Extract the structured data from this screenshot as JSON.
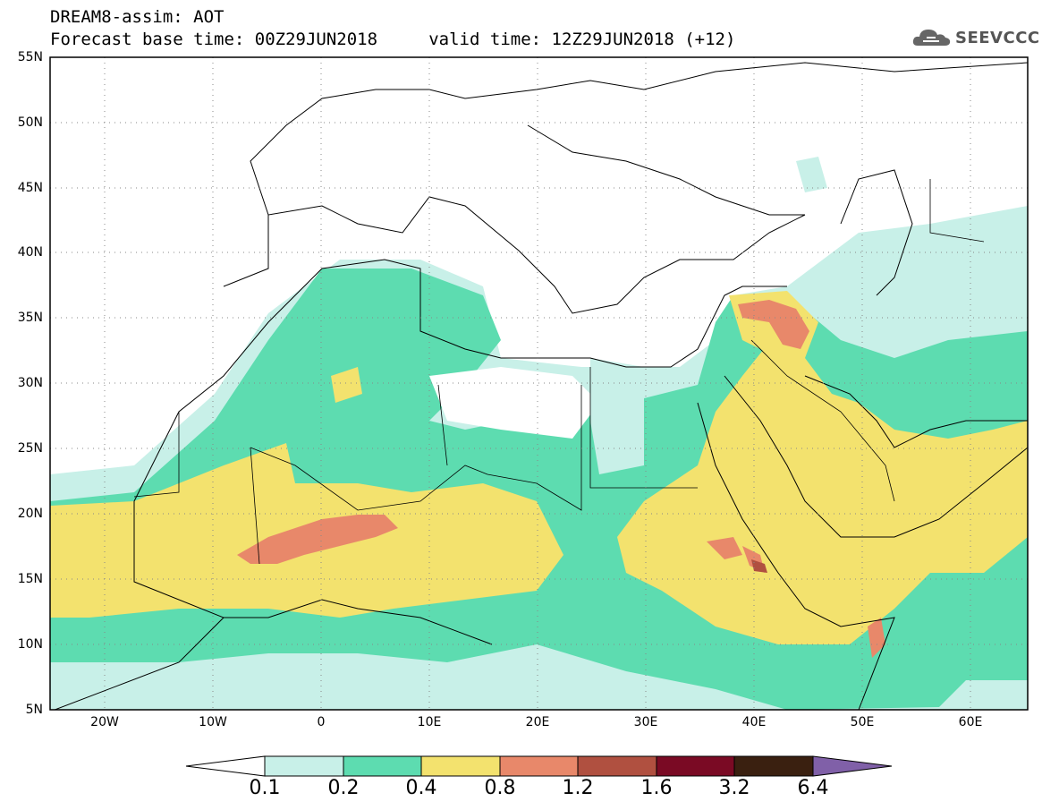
{
  "header": {
    "title_line1": "DREAM8-assim: AOT",
    "title_line2": "Forecast base time: 00Z29JUN2018     valid time: 12Z29JUN2018 (+12)",
    "logo_text": "SEEVCCC",
    "logo_icon": "cloud-icon"
  },
  "map": {
    "lat_labels": [
      "55N",
      "50N",
      "45N",
      "40N",
      "35N",
      "30N",
      "25N",
      "20N",
      "15N",
      "10N",
      "5N"
    ],
    "lon_labels": [
      "20W",
      "10W",
      "0",
      "10E",
      "20E",
      "30E",
      "40E",
      "50E",
      "60E"
    ],
    "lat_range": [
      5,
      55
    ],
    "lon_range": [
      -25,
      65
    ],
    "grid": true
  },
  "colorbar": {
    "levels": [
      "0.1",
      "0.2",
      "0.4",
      "0.8",
      "1.2",
      "1.6",
      "3.2",
      "6.4"
    ],
    "colors": [
      "#ffffff",
      "#c8f0e8",
      "#5ddcb0",
      "#f3e26e",
      "#e8886a",
      "#b05040",
      "#7a0a24",
      "#3a2010",
      "#8060a8"
    ]
  }
}
